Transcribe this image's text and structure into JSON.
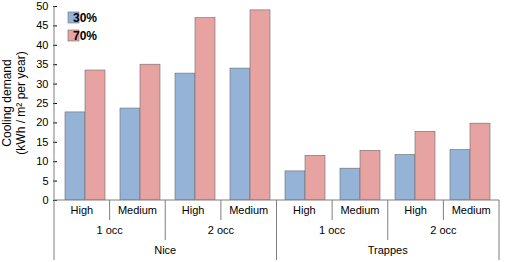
{
  "chart_data": {
    "type": "bar",
    "y_label": "Cooling demand\n(kWh / m² per year)",
    "categories": [
      "High",
      "Medium",
      "High",
      "Medium",
      "High",
      "Medium",
      "High",
      "Medium"
    ],
    "group_levels": [
      [
        "1 occ",
        "2 occ",
        "1 occ",
        "2 occ"
      ],
      [
        "Nice",
        "Trappes"
      ]
    ],
    "series": [
      {
        "name": "30%",
        "color": "#95b3d7",
        "values": [
          22.7,
          23.7,
          32.7,
          34.0,
          7.5,
          8.2,
          11.7,
          13.0
        ]
      },
      {
        "name": "70%",
        "color": "#e6a3a1",
        "values": [
          33.5,
          35.0,
          47.0,
          49.0,
          11.5,
          12.8,
          17.7,
          19.8
        ]
      }
    ],
    "ylim": [
      0,
      50
    ],
    "yticks": [
      0,
      5,
      10,
      15,
      20,
      25,
      30,
      35,
      40,
      45,
      50
    ],
    "grid": false,
    "legend": "top-left"
  }
}
